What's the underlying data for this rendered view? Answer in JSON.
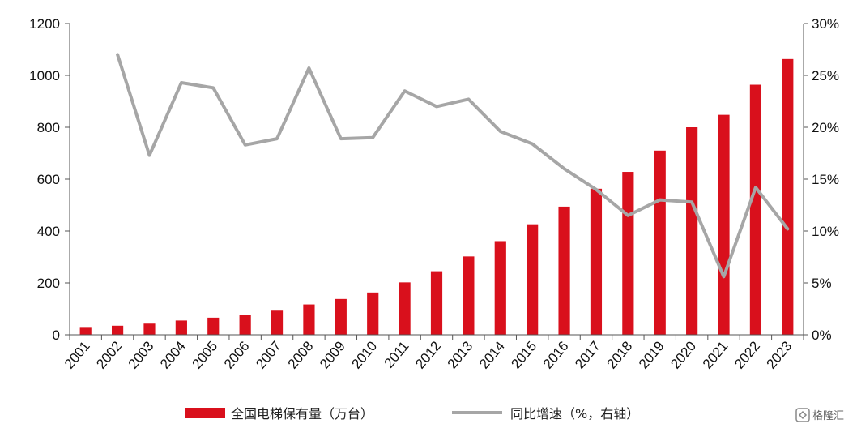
{
  "chart_data": {
    "type": "bar",
    "categories": [
      "2001",
      "2002",
      "2003",
      "2004",
      "2005",
      "2006",
      "2007",
      "2008",
      "2009",
      "2010",
      "2011",
      "2012",
      "2013",
      "2014",
      "2015",
      "2016",
      "2017",
      "2018",
      "2019",
      "2020",
      "2021",
      "2022",
      "2023"
    ],
    "series": [
      {
        "name": "全国电梯保有量（万台）",
        "type": "bar",
        "axis": "left",
        "color": "#d9101c",
        "values": [
          27,
          35,
          43,
          55,
          66,
          78,
          93,
          117,
          138,
          163,
          202,
          245,
          302,
          361,
          426,
          494,
          563,
          628,
          710,
          800,
          848,
          964,
          1063
        ]
      },
      {
        "name": "同比增速（%，右轴）",
        "type": "line",
        "axis": "right",
        "color": "#a6a6a6",
        "values": [
          null,
          27.0,
          17.3,
          24.3,
          23.8,
          18.3,
          18.9,
          25.7,
          18.9,
          19.0,
          23.5,
          22.0,
          22.7,
          19.6,
          18.4,
          16.0,
          14.0,
          11.5,
          13.0,
          12.8,
          5.6,
          14.2,
          10.2
        ]
      }
    ],
    "y_left": {
      "ylim": [
        0,
        1200
      ],
      "ticks": [
        0,
        200,
        400,
        600,
        800,
        1000,
        1200
      ]
    },
    "y_right": {
      "ylim": [
        0,
        30
      ],
      "ticks": [
        "0%",
        "5%",
        "10%",
        "15%",
        "20%",
        "25%",
        "30%"
      ]
    },
    "title": "",
    "xlabel": "",
    "ylabel": "",
    "grid": false,
    "legend_position": "bottom"
  },
  "legend": {
    "bar_label": "全国电梯保有量（万台）",
    "line_label": "同比增速（%，右轴）"
  },
  "watermark": {
    "text": "格隆汇",
    "icon": "watermark-logo-icon"
  }
}
